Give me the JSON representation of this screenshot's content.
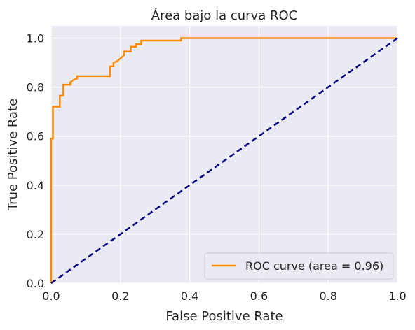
{
  "chart_data": {
    "type": "line",
    "title": "Área bajo la curva ROC",
    "xlabel": "False Positive Rate",
    "ylabel": "True Positive Rate",
    "xlim": [
      0.0,
      1.0
    ],
    "ylim": [
      0.0,
      1.05
    ],
    "xticks": [
      "0.0",
      "0.2",
      "0.4",
      "0.6",
      "0.8",
      "1.0"
    ],
    "yticks": [
      "0.0",
      "0.2",
      "0.4",
      "0.6",
      "0.8",
      "1.0"
    ],
    "grid": true,
    "legend_position": "lower-right",
    "colors": {
      "background": "#eaeaf2",
      "grid": "#ffffff",
      "roc": "#ff8c00",
      "diagonal": "#000080"
    },
    "series": [
      {
        "name": "ROC curve (area = 0.96)",
        "style": "solid",
        "color": "#ff8c00",
        "x": [
          0.0,
          0.0,
          0.0,
          0.0,
          0.005,
          0.005,
          0.005,
          0.005,
          0.025,
          0.025,
          0.035,
          0.035,
          0.055,
          0.055,
          0.065,
          0.075,
          0.075,
          0.17,
          0.17,
          0.18,
          0.18,
          0.19,
          0.21,
          0.21,
          0.23,
          0.23,
          0.245,
          0.245,
          0.26,
          0.26,
          0.375,
          0.375,
          1.0
        ],
        "y": [
          0.0,
          0.42,
          0.55,
          0.59,
          0.59,
          0.66,
          0.69,
          0.72,
          0.72,
          0.765,
          0.765,
          0.81,
          0.81,
          0.82,
          0.83,
          0.835,
          0.845,
          0.845,
          0.885,
          0.885,
          0.9,
          0.905,
          0.93,
          0.945,
          0.945,
          0.965,
          0.965,
          0.975,
          0.975,
          0.99,
          0.99,
          1.0,
          1.0
        ]
      },
      {
        "style": "dashed",
        "color": "#000080",
        "x": [
          0.0,
          1.0
        ],
        "y": [
          0.0,
          1.0
        ]
      }
    ],
    "legend": [
      {
        "label": "ROC curve (area = 0.96)",
        "color": "#ff8c00"
      }
    ]
  }
}
